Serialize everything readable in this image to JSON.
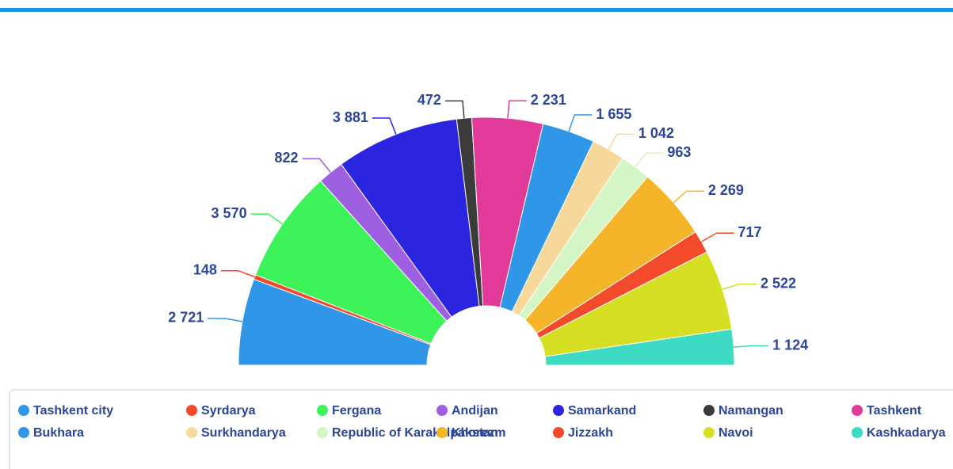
{
  "chart_data": {
    "type": "semi-donut",
    "categories": [
      "Tashkent city",
      "Syrdarya",
      "Fergana",
      "Andijan",
      "Samarkand",
      "Namangan",
      "Tashkent",
      "Bukhara",
      "Surkhandarya",
      "Republic of Karakalpakstan",
      "Khorezm",
      "Jizzakh",
      "Navoi",
      "Kashkadarya"
    ],
    "values": [
      2721,
      148,
      3570,
      822,
      3881,
      472,
      2231,
      1655,
      1042,
      963,
      2269,
      717,
      2522,
      1124
    ],
    "value_labels": [
      "2 721",
      "148",
      "3 570",
      "822",
      "3 881",
      "472",
      "2 231",
      "1 655",
      "1 042",
      "963",
      "2 269",
      "717",
      "2 522",
      "1 124"
    ],
    "colors": [
      "#2f96e8",
      "#f24a2a",
      "#3ef25a",
      "#9e5fe0",
      "#2c25e0",
      "#3b3b3b",
      "#e23a9a",
      "#2f96e8",
      "#f5d89a",
      "#d4f5c4",
      "#f5b52a",
      "#f24a2a",
      "#d6df22",
      "#3ddbc4"
    ],
    "legend": true
  }
}
